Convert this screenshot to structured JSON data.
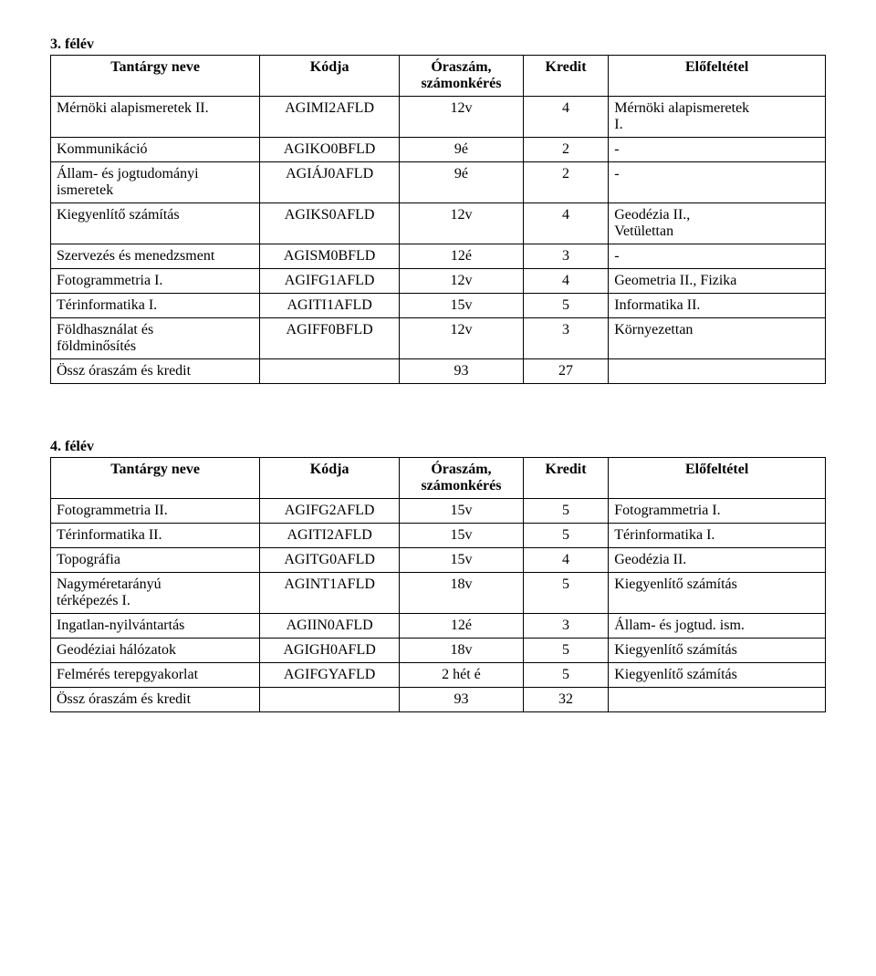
{
  "semester3": {
    "title": "3. félév",
    "headers": {
      "name": "Tantárgy neve",
      "code": "Kódja",
      "hours_line1": "Óraszám,",
      "hours_line2": "számonkérés",
      "credit": "Kredit",
      "prereq": "Előfeltétel"
    },
    "rows": [
      {
        "name": "Mérnöki alapismeretek II.",
        "code": "AGIMI2AFLD",
        "hours": "12v",
        "credit": "4",
        "prereq_line1": "Mérnöki alapismeretek",
        "prereq_line2": "I."
      },
      {
        "name": "Kommunikáció",
        "code": "AGIKO0BFLD",
        "hours": "9é",
        "credit": "2",
        "prereq_line1": "-"
      },
      {
        "name_line1": "Állam- és jogtudományi",
        "name_line2": "ismeretek",
        "code": "AGIÁJ0AFLD",
        "hours": "9é",
        "credit": "2",
        "prereq_line1": "-"
      },
      {
        "name": "Kiegyenlítő számítás",
        "code": "AGIKS0AFLD",
        "hours": "12v",
        "credit": "4",
        "prereq_line1": "Geodézia II.,",
        "prereq_line2": "Vetülettan"
      },
      {
        "name": "Szervezés és menedzsment",
        "code": "AGISM0BFLD",
        "hours": "12é",
        "credit": "3",
        "prereq_line1": "-"
      },
      {
        "name": "Fotogrammetria I.",
        "code": "AGIFG1AFLD",
        "hours": "12v",
        "credit": "4",
        "prereq_line1": "Geometria II., Fizika"
      },
      {
        "name": "Térinformatika I.",
        "code": "AGITI1AFLD",
        "hours": "15v",
        "credit": "5",
        "prereq_line1": "Informatika II."
      },
      {
        "name_line1": "Földhasználat és",
        "name_line2": "földminősítés",
        "code": "AGIFF0BFLD",
        "hours": "12v",
        "credit": "3",
        "prereq_line1": "Környezettan"
      }
    ],
    "total": {
      "label": "Össz óraszám és kredit",
      "hours": "93",
      "credit": "27"
    }
  },
  "semester4": {
    "title": "4. félév",
    "headers": {
      "name": "Tantárgy neve",
      "code": "Kódja",
      "hours_line1": "Óraszám,",
      "hours_line2": "számonkérés",
      "credit": "Kredit",
      "prereq": "Előfeltétel"
    },
    "rows": [
      {
        "name": "Fotogrammetria II.",
        "code": "AGIFG2AFLD",
        "hours": "15v",
        "credit": "5",
        "prereq_line1": "Fotogrammetria I."
      },
      {
        "name": "Térinformatika II.",
        "code": "AGITI2AFLD",
        "hours": "15v",
        "credit": "5",
        "prereq_line1": "Térinformatika I."
      },
      {
        "name": "Topográfia",
        "code": "AGITG0AFLD",
        "hours": "15v",
        "credit": "4",
        "prereq_line1": "Geodézia II."
      },
      {
        "name_line1": "Nagyméretarányú",
        "name_line2": "térképezés I.",
        "code": "AGINT1AFLD",
        "hours": "18v",
        "credit": "5",
        "prereq_line1": "Kiegyenlítő számítás"
      },
      {
        "name": "Ingatlan-nyilvántartás",
        "code": "AGIIN0AFLD",
        "hours": "12é",
        "credit": "3",
        "prereq_line1": "Állam- és jogtud.  ism."
      },
      {
        "name": "Geodéziai hálózatok",
        "code": "AGIGH0AFLD",
        "hours": "18v",
        "credit": "5",
        "prereq_line1": "Kiegyenlítő számítás"
      },
      {
        "name": "Felmérés terepgyakorlat",
        "code": "AGIFGYAFLD",
        "hours": "2 hét é",
        "credit": "5",
        "prereq_line1": "Kiegyenlítő számítás"
      }
    ],
    "total": {
      "label": "Össz óraszám és kredit",
      "hours": "93",
      "credit": "32"
    }
  }
}
